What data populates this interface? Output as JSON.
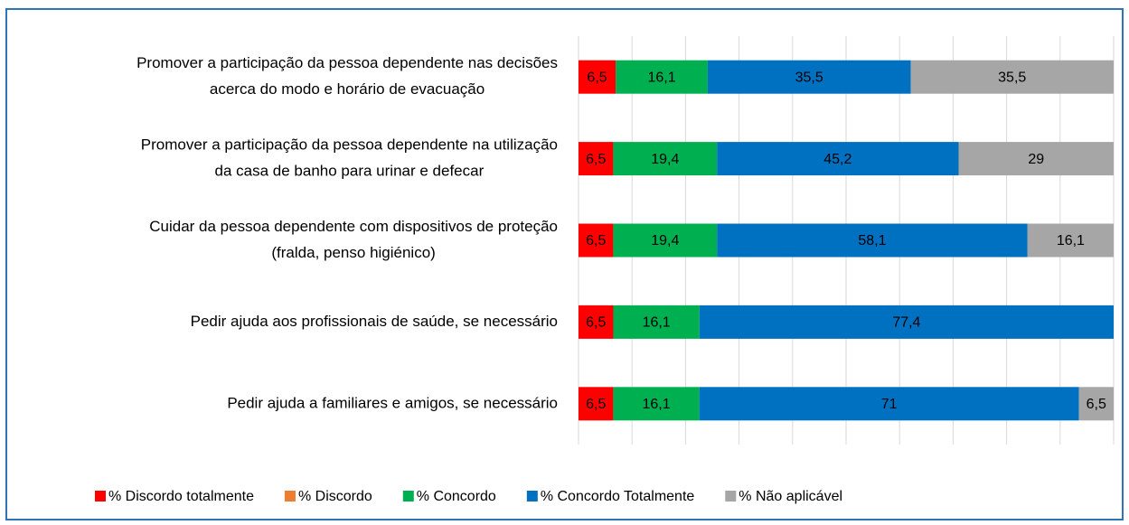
{
  "chart_data": {
    "type": "bar",
    "orientation": "horizontal",
    "stacked": "percent",
    "categories": [
      [
        "Promover a participação da pessoa dependente nas decisões",
        "acerca do modo e horário de evacuação"
      ],
      [
        "Promover a participação da pessoa dependente na utilização",
        "da casa de banho para urinar e defecar"
      ],
      [
        "Cuidar da pessoa dependente com dispositivos de proteção",
        "(fralda, penso higiénico)"
      ],
      [
        "Pedir ajuda aos profissionais de saúde, se necessário"
      ],
      [
        "Pedir ajuda a familiares e amigos, se necessário"
      ]
    ],
    "series": [
      {
        "name": "% Discordo totalmente",
        "color": "#ff0000",
        "values": [
          6.5,
          6.5,
          6.5,
          6.5,
          6.5
        ],
        "value_labels": [
          "6,5",
          "6,5",
          "6,5",
          "6,5",
          "6,5"
        ]
      },
      {
        "name": "% Discordo",
        "color": "#ed7d31",
        "values": [
          0,
          0,
          0,
          0,
          0
        ],
        "value_labels": [
          null,
          null,
          null,
          null,
          null
        ]
      },
      {
        "name": "% Concordo",
        "color": "#00b050",
        "values": [
          16.1,
          19.4,
          19.4,
          16.1,
          16.1
        ],
        "value_labels": [
          "16,1",
          "19,4",
          "19,4",
          "16,1",
          "16,1"
        ]
      },
      {
        "name": "% Concordo Totalmente",
        "color": "#0070c0",
        "values": [
          35.5,
          45.2,
          58.1,
          77.4,
          71
        ],
        "value_labels": [
          "35,5",
          "45,2",
          "58,1",
          "77,4",
          "71"
        ]
      },
      {
        "name": "% Não aplicável",
        "color": "#a6a6a6",
        "values": [
          35.5,
          29,
          16.1,
          0,
          6.5
        ],
        "value_labels": [
          "35,5",
          "29",
          "16,1",
          null,
          "6,5"
        ]
      }
    ],
    "xlim": [
      0,
      100
    ],
    "xticks": [
      0,
      10,
      20,
      30,
      40,
      50,
      60,
      70,
      80,
      90,
      100
    ],
    "grid": true,
    "legend": "bottom"
  }
}
